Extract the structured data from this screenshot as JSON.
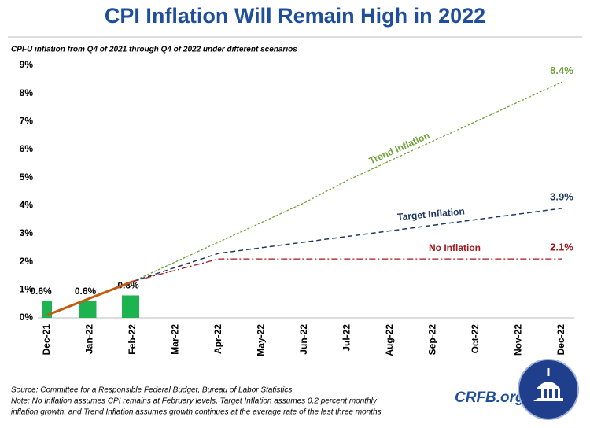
{
  "chart_data": {
    "type": "line",
    "title": "CPI Inflation Will Remain High in 2022",
    "subtitle": "CPI-U inflation from Q4 of 2021 through Q4 of 2022 under different scenarios",
    "categories": [
      "Dec-21",
      "Jan-22",
      "Feb-22",
      "Mar-22",
      "Apr-22",
      "May-22",
      "Jun-22",
      "Jul-22",
      "Aug-22",
      "Sep-22",
      "Oct-22",
      "Nov-22",
      "Dec-22"
    ],
    "bars": {
      "color": "#1db34f",
      "values": [
        0.6,
        0.6,
        0.8,
        null,
        null,
        null,
        null,
        null,
        null,
        null,
        null,
        null,
        null
      ],
      "value_labels": [
        "0.6%",
        "0.6%",
        "0.8%",
        null,
        null,
        null,
        null,
        null,
        null,
        null,
        null,
        null,
        null
      ]
    },
    "series": [
      {
        "color": "#c55a11",
        "dash": "none",
        "width": 3,
        "values": [
          0.1,
          0.7,
          1.3,
          null,
          null,
          null,
          null,
          null,
          null,
          null,
          null,
          null,
          null
        ]
      },
      {
        "name": "Trend Inflation",
        "color": "#70a33a",
        "dash": "3,2",
        "width": 1.3,
        "values": [
          null,
          null,
          1.3,
          2.0,
          2.7,
          3.4,
          4.1,
          4.9,
          5.6,
          6.3,
          7.0,
          7.7,
          8.4
        ],
        "value_labels": [
          null,
          null,
          null,
          null,
          null,
          null,
          null,
          null,
          null,
          null,
          null,
          null,
          "8.4%"
        ]
      },
      {
        "name": "Target Inflation",
        "color": "#1f3864",
        "dash": "6,4",
        "width": 1.5,
        "values": [
          null,
          null,
          1.3,
          1.8,
          2.3,
          2.5,
          2.7,
          2.9,
          3.1,
          3.3,
          3.5,
          3.7,
          3.9
        ],
        "value_labels": [
          null,
          null,
          null,
          null,
          null,
          null,
          null,
          null,
          null,
          null,
          null,
          null,
          "3.9%"
        ]
      },
      {
        "name": "No Inflation",
        "color": "#a0191e",
        "dash": "8,3,2,3",
        "width": 1.3,
        "values": [
          null,
          null,
          1.3,
          1.7,
          2.1,
          2.1,
          2.1,
          2.1,
          2.1,
          2.1,
          2.1,
          2.1,
          2.1
        ],
        "value_labels": [
          null,
          null,
          null,
          null,
          null,
          null,
          null,
          null,
          null,
          null,
          null,
          null,
          "2.1%"
        ]
      }
    ],
    "ylim": [
      0,
      9
    ],
    "yticks": [
      {
        "value": 0,
        "label": "0%"
      },
      {
        "value": 1,
        "label": "1%"
      },
      {
        "value": 2,
        "label": "2%"
      },
      {
        "value": 3,
        "label": "3%"
      },
      {
        "value": 4,
        "label": "4%"
      },
      {
        "value": 5,
        "label": "5%"
      },
      {
        "value": 6,
        "label": "6%"
      },
      {
        "value": 7,
        "label": "7%"
      },
      {
        "value": 8,
        "label": "8%"
      },
      {
        "value": 9,
        "label": "9%"
      }
    ],
    "grid": false,
    "source": "Source: Committee for a Responsible Federal Budget, Bureau of Labor Statistics",
    "note_lines": [
      "Note: No Inflation assumes CPI remains at February levels, Target Inflation assumes 0.2 percent monthly",
      "inflation growth,  and Trend Inflation assumes growth continues at the average rate of the last three months"
    ],
    "logo": "CRFB.org"
  }
}
